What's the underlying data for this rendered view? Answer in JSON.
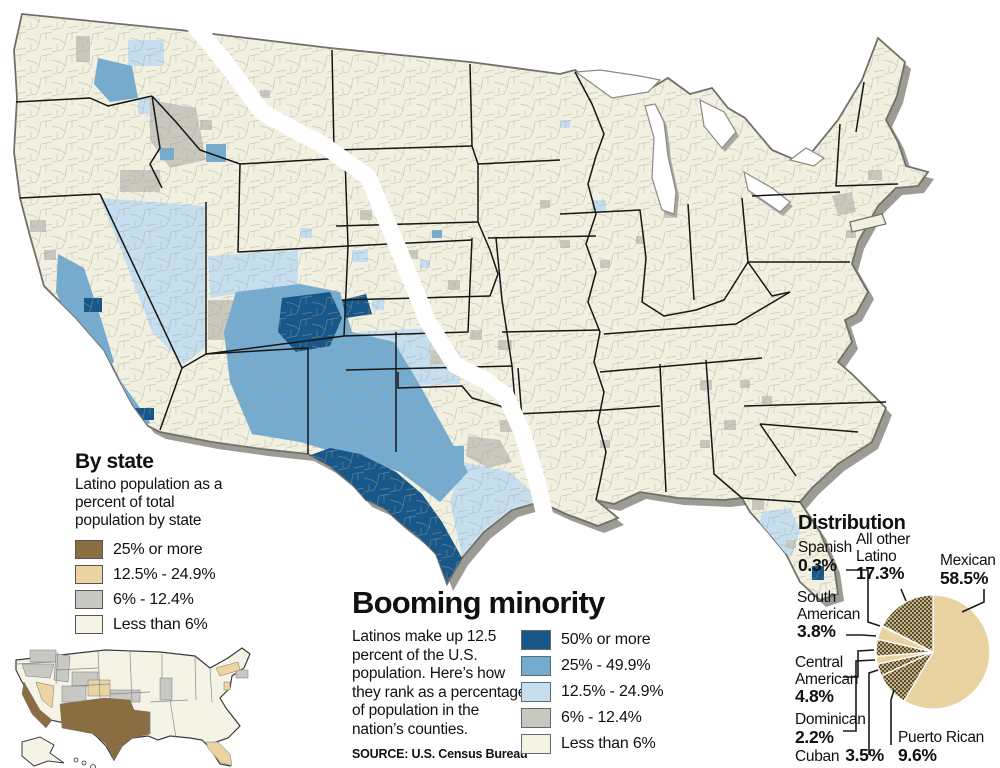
{
  "title_block": {
    "title": "Booming minority",
    "description": "Latinos make up 12.5 percent of the U.S. population. Here’s how they rank as a percentage of population in the nation’s counties.",
    "source": "SOURCE: U.S. Census Bureau"
  },
  "county_legend": {
    "items": [
      {
        "label": "50% or more",
        "color": "#17578a"
      },
      {
        "label": "25% - 49.9%",
        "color": "#74abd0"
      },
      {
        "label": "12.5% - 24.9%",
        "color": "#c5def0"
      },
      {
        "label": "6% - 12.4%",
        "color": "#c9c8be"
      },
      {
        "label": "Less than 6%",
        "color": "#f4f3e4"
      }
    ]
  },
  "state_block": {
    "title": "By state",
    "subtitle": "Latino population as a percent of total population by state",
    "items": [
      {
        "label": "25% or more",
        "color": "#8a6d41"
      },
      {
        "label": "12.5% - 24.9%",
        "color": "#ecd3a2"
      },
      {
        "label": "6% - 12.4%",
        "color": "#c9c9c3"
      },
      {
        "label": "Less than 6%",
        "color": "#f4f3e6"
      }
    ]
  },
  "pie": {
    "title": "Distribution",
    "labels": {
      "mexican": {
        "name": "Mexican",
        "pct": "58.5%"
      },
      "puerto_rican": {
        "name": "Puerto Rican",
        "pct": "9.6%"
      },
      "cuban": {
        "name": "Cuban",
        "pct": "3.5%"
      },
      "dominican": {
        "name": "Dominican",
        "pct": "2.2%"
      },
      "central_american": {
        "name": "Central American",
        "pct": "4.8%"
      },
      "south_american": {
        "name": "South American",
        "pct": "3.8%"
      },
      "spanish": {
        "name": "Spanish",
        "pct": "0.3%"
      },
      "all_other": {
        "name": "All other Latino",
        "pct": "17.3%"
      }
    }
  },
  "colors": {
    "pie_tan": "#e9d3a1",
    "hatch_base": "#c7b27e",
    "hatch_dot": "#564e3a",
    "land_cream": "#f2f0e1",
    "county_line": "#b1ae9c",
    "shadow": "#9c9c95"
  },
  "chart_data": [
    {
      "type": "pie",
      "title": "Distribution",
      "slices": [
        {
          "label": "Mexican",
          "value": 58.5,
          "hatched": false
        },
        {
          "label": "Puerto Rican",
          "value": 9.6,
          "hatched": true
        },
        {
          "label": "Cuban",
          "value": 3.5,
          "hatched": true
        },
        {
          "label": "Dominican",
          "value": 2.2,
          "hatched": false
        },
        {
          "label": "Central American",
          "value": 4.8,
          "hatched": true
        },
        {
          "label": "South American",
          "value": 3.8,
          "hatched": false
        },
        {
          "label": "Spanish",
          "value": 0.3,
          "hatched": false
        },
        {
          "label": "All other Latino",
          "value": 17.3,
          "hatched": true
        }
      ],
      "legend_position": "callout-labels"
    },
    {
      "type": "choropleth",
      "title": "Booming minority",
      "level": "county",
      "legend": [
        "50% or more",
        "25% - 49.9%",
        "12.5% - 24.9%",
        "6% - 12.4%",
        "Less than 6%"
      ]
    },
    {
      "type": "choropleth",
      "title": "By state",
      "level": "state",
      "legend": [
        "25% or more",
        "12.5% - 24.9%",
        "6% - 12.4%",
        "Less than 6%"
      ],
      "state_classes": {
        "25% or more": [
          "CA",
          "AZ",
          "NM",
          "TX"
        ],
        "12.5% - 24.9%": [
          "NV",
          "CO",
          "FL",
          "NY",
          "NJ"
        ],
        "6% - 12.4%": [
          "WA",
          "OR",
          "ID",
          "UT",
          "WY",
          "KS",
          "IL",
          "MA",
          "RI",
          "CT"
        ],
        "Less than 6%": [
          "all other states"
        ]
      }
    }
  ]
}
